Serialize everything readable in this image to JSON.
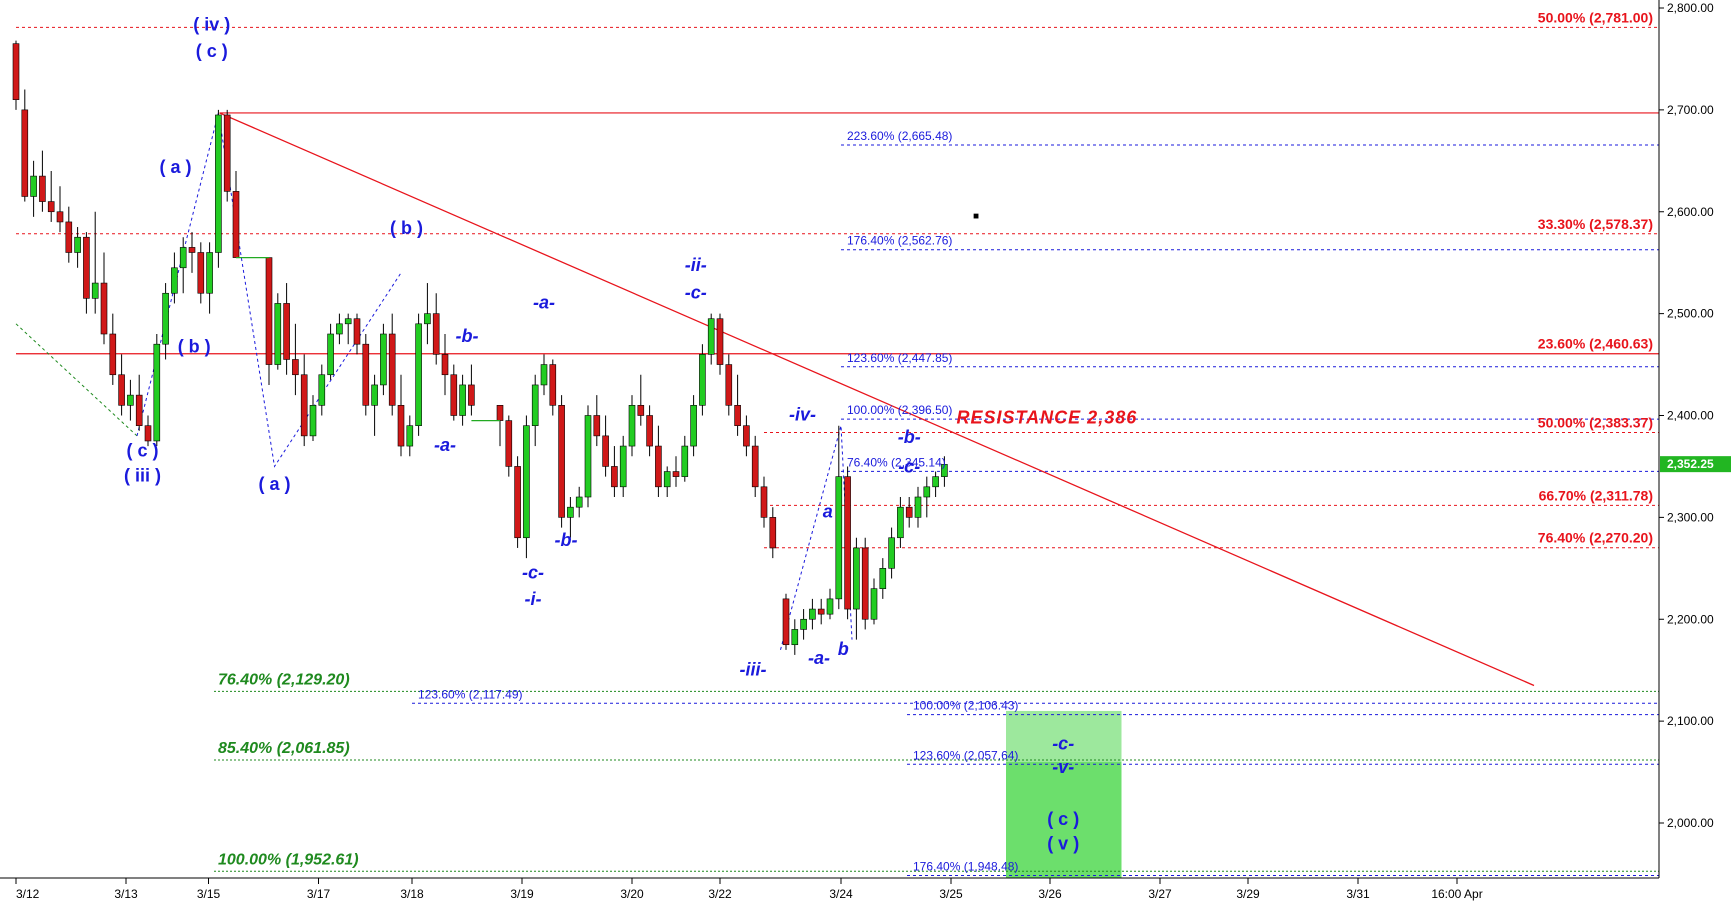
{
  "chart_data": {
    "type": "candlestick",
    "title": "",
    "xlabel": "",
    "ylabel": "",
    "ylim": [
      1940,
      2815
    ],
    "price_axis_ticks": [
      "2,800.00",
      "2,700.00",
      "2,600.00",
      "2,500.00",
      "2,400.00",
      "2,300.00",
      "2,200.00",
      "2,100.00",
      "2,000.00"
    ],
    "price_axis_tick_values": [
      2800,
      2700,
      2600,
      2500,
      2400,
      2300,
      2200,
      2100,
      2000
    ],
    "time_axis_ticks": [
      "3/12",
      "3/13",
      "3/15",
      "3/17",
      "3/18",
      "3/19",
      "3/20",
      "3/22",
      "3/24",
      "3/25",
      "3/26",
      "3/27",
      "3/29",
      "3/31",
      "16:00 Apr"
    ],
    "time_axis_tick_positions": [
      0.0,
      1.0,
      1.75,
      2.75,
      3.6,
      4.6,
      5.6,
      6.4,
      7.5,
      8.5,
      9.4,
      10.4,
      11.2,
      12.2,
      13.1
    ],
    "last_price": {
      "label": "2,352.25",
      "value": 2352.25,
      "color": "#22b622"
    },
    "candles": [
      [
        0.0,
        2765,
        2768,
        2700,
        2710
      ],
      [
        0.08,
        2700,
        2720,
        2610,
        2615
      ],
      [
        0.16,
        2615,
        2650,
        2595,
        2635
      ],
      [
        0.24,
        2635,
        2660,
        2600,
        2610
      ],
      [
        0.32,
        2610,
        2640,
        2590,
        2600
      ],
      [
        0.4,
        2600,
        2625,
        2580,
        2590
      ],
      [
        0.48,
        2590,
        2605,
        2550,
        2560
      ],
      [
        0.56,
        2560,
        2585,
        2545,
        2575
      ],
      [
        0.64,
        2575,
        2580,
        2500,
        2515
      ],
      [
        0.72,
        2515,
        2600,
        2500,
        2530
      ],
      [
        0.8,
        2530,
        2560,
        2470,
        2480
      ],
      [
        0.88,
        2480,
        2500,
        2430,
        2440
      ],
      [
        0.96,
        2440,
        2460,
        2400,
        2410
      ],
      [
        1.04,
        2410,
        2435,
        2395,
        2420
      ],
      [
        1.12,
        2420,
        2440,
        2385,
        2390
      ],
      [
        1.2,
        2390,
        2400,
        2370,
        2375
      ],
      [
        1.28,
        2375,
        2480,
        2370,
        2470
      ],
      [
        1.36,
        2470,
        2530,
        2455,
        2520
      ],
      [
        1.44,
        2520,
        2560,
        2510,
        2545
      ],
      [
        1.52,
        2545,
        2575,
        2520,
        2565
      ],
      [
        1.6,
        2565,
        2580,
        2540,
        2560
      ],
      [
        1.68,
        2560,
        2570,
        2510,
        2520
      ],
      [
        1.76,
        2520,
        2570,
        2500,
        2560
      ],
      [
        1.84,
        2560,
        2700,
        2545,
        2695
      ],
      [
        1.92,
        2695,
        2700,
        2610,
        2620
      ],
      [
        2.0,
        2620,
        2640,
        2555,
        2555
      ],
      [
        2.3,
        2555,
        2555,
        2430,
        2450
      ],
      [
        2.38,
        2450,
        2520,
        2445,
        2510
      ],
      [
        2.46,
        2510,
        2530,
        2440,
        2455
      ],
      [
        2.54,
        2455,
        2490,
        2420,
        2440
      ],
      [
        2.62,
        2440,
        2460,
        2370,
        2380
      ],
      [
        2.7,
        2380,
        2420,
        2375,
        2410
      ],
      [
        2.78,
        2410,
        2450,
        2400,
        2440
      ],
      [
        2.86,
        2440,
        2490,
        2435,
        2480
      ],
      [
        2.94,
        2480,
        2500,
        2470,
        2490
      ],
      [
        3.02,
        2490,
        2500,
        2470,
        2495
      ],
      [
        3.1,
        2495,
        2500,
        2460,
        2470
      ],
      [
        3.18,
        2470,
        2480,
        2400,
        2410
      ],
      [
        3.26,
        2410,
        2440,
        2380,
        2430
      ],
      [
        3.34,
        2430,
        2490,
        2420,
        2480
      ],
      [
        3.42,
        2480,
        2500,
        2400,
        2410
      ],
      [
        3.5,
        2410,
        2440,
        2360,
        2370
      ],
      [
        3.58,
        2370,
        2400,
        2360,
        2390
      ],
      [
        3.66,
        2390,
        2500,
        2380,
        2490
      ],
      [
        3.74,
        2490,
        2530,
        2470,
        2500
      ],
      [
        3.82,
        2500,
        2520,
        2450,
        2460
      ],
      [
        3.9,
        2460,
        2480,
        2420,
        2440
      ],
      [
        3.98,
        2440,
        2450,
        2395,
        2400
      ],
      [
        4.06,
        2400,
        2440,
        2390,
        2430
      ],
      [
        4.14,
        2430,
        2450,
        2400,
        2410
      ],
      [
        4.4,
        2410,
        2410,
        2370,
        2395
      ],
      [
        4.48,
        2395,
        2400,
        2340,
        2350
      ],
      [
        4.56,
        2350,
        2360,
        2270,
        2280
      ],
      [
        4.64,
        2280,
        2400,
        2260,
        2390
      ],
      [
        4.72,
        2390,
        2440,
        2370,
        2430
      ],
      [
        4.8,
        2430,
        2460,
        2420,
        2450
      ],
      [
        4.88,
        2450,
        2455,
        2400,
        2410
      ],
      [
        4.96,
        2410,
        2420,
        2290,
        2300
      ],
      [
        5.04,
        2300,
        2320,
        2280,
        2310
      ],
      [
        5.12,
        2310,
        2330,
        2300,
        2320
      ],
      [
        5.2,
        2320,
        2410,
        2310,
        2400
      ],
      [
        5.28,
        2400,
        2420,
        2370,
        2380
      ],
      [
        5.36,
        2380,
        2400,
        2340,
        2350
      ],
      [
        5.44,
        2350,
        2370,
        2320,
        2330
      ],
      [
        5.52,
        2330,
        2380,
        2320,
        2370
      ],
      [
        5.6,
        2370,
        2420,
        2360,
        2410
      ],
      [
        5.68,
        2410,
        2440,
        2390,
        2400
      ],
      [
        5.76,
        2400,
        2410,
        2360,
        2370
      ],
      [
        5.84,
        2370,
        2390,
        2320,
        2330
      ],
      [
        5.92,
        2330,
        2350,
        2320,
        2345
      ],
      [
        6.0,
        2345,
        2360,
        2330,
        2340
      ],
      [
        6.08,
        2340,
        2380,
        2335,
        2370
      ],
      [
        6.16,
        2370,
        2420,
        2360,
        2410
      ],
      [
        6.24,
        2410,
        2470,
        2400,
        2460
      ],
      [
        6.32,
        2460,
        2500,
        2450,
        2495
      ],
      [
        6.4,
        2495,
        2500,
        2440,
        2450
      ],
      [
        6.48,
        2450,
        2460,
        2400,
        2410
      ],
      [
        6.56,
        2410,
        2440,
        2380,
        2390
      ],
      [
        6.64,
        2390,
        2400,
        2360,
        2370
      ],
      [
        6.72,
        2370,
        2380,
        2320,
        2330
      ],
      [
        6.8,
        2330,
        2340,
        2290,
        2300
      ],
      [
        6.88,
        2300,
        2310,
        2260,
        2270
      ],
      [
        7.0,
        2220,
        2225,
        2170,
        2175
      ],
      [
        7.08,
        2175,
        2200,
        2165,
        2190
      ],
      [
        7.16,
        2190,
        2210,
        2180,
        2200
      ],
      [
        7.24,
        2200,
        2220,
        2190,
        2210
      ],
      [
        7.32,
        2210,
        2220,
        2195,
        2205
      ],
      [
        7.4,
        2205,
        2230,
        2200,
        2220
      ],
      [
        7.48,
        2220,
        2390,
        2210,
        2340
      ],
      [
        7.56,
        2340,
        2350,
        2200,
        2210
      ],
      [
        7.64,
        2210,
        2280,
        2180,
        2270
      ],
      [
        7.72,
        2270,
        2280,
        2190,
        2200
      ],
      [
        7.8,
        2200,
        2240,
        2195,
        2230
      ],
      [
        7.88,
        2230,
        2260,
        2220,
        2250
      ],
      [
        7.96,
        2250,
        2290,
        2240,
        2280
      ],
      [
        8.04,
        2280,
        2320,
        2270,
        2310
      ],
      [
        8.12,
        2310,
        2320,
        2290,
        2300
      ],
      [
        8.2,
        2300,
        2330,
        2290,
        2320
      ],
      [
        8.28,
        2320,
        2340,
        2300,
        2330
      ],
      [
        8.36,
        2330,
        2345,
        2320,
        2340
      ],
      [
        8.44,
        2340,
        2360,
        2330,
        2352
      ]
    ],
    "price_lines": [
      {
        "label": "50.00% (2,781.00)",
        "value": 2781.0,
        "color": "#e8141c",
        "style": "dashed",
        "from_x": 0.0,
        "label_side": "right"
      },
      {
        "label": "",
        "value": 2697.0,
        "color": "#e8141c",
        "style": "solid",
        "from_x": 1.85,
        "label_side": "none"
      },
      {
        "label": "223.60% (2,665.48)",
        "value": 2665.48,
        "color": "#1a1adc",
        "style": "dashed",
        "from_x": 7.5,
        "label_side": "left"
      },
      {
        "label": "33.30% (2,578.37)",
        "value": 2578.37,
        "color": "#e8141c",
        "style": "dashed",
        "from_x": 0.0,
        "label_side": "right"
      },
      {
        "label": "176.40% (2,562.76)",
        "value": 2562.76,
        "color": "#1a1adc",
        "style": "dashed",
        "from_x": 7.5,
        "label_side": "left"
      },
      {
        "label": "23.60% (2,460.63)",
        "value": 2460.63,
        "color": "#e8141c",
        "style": "solid",
        "from_x": 0.0,
        "label_side": "right"
      },
      {
        "label": "123.60% (2,447.85)",
        "value": 2447.85,
        "color": "#1a1adc",
        "style": "dashed",
        "from_x": 7.5,
        "label_side": "left"
      },
      {
        "label": "100.00% (2,396.50)",
        "value": 2396.5,
        "color": "#1a1adc",
        "style": "dashed",
        "from_x": 7.5,
        "label_side": "left"
      },
      {
        "label": "50.00% (2,383.37)",
        "value": 2383.37,
        "color": "#e8141c",
        "style": "dashed",
        "from_x": 6.8,
        "label_side": "right"
      },
      {
        "label": "76.40% (2,345.14)",
        "value": 2345.14,
        "color": "#1a1adc",
        "style": "dashed",
        "from_x": 7.5,
        "label_side": "left"
      },
      {
        "label": "66.70% (2,311.78)",
        "value": 2311.78,
        "color": "#e8141c",
        "style": "dashed",
        "from_x": 6.8,
        "label_side": "right"
      },
      {
        "label": "76.40% (2,270.20)",
        "value": 2270.2,
        "color": "#e8141c",
        "style": "dashed",
        "from_x": 6.8,
        "label_side": "right"
      },
      {
        "label": "76.40% (2,129.20)",
        "value": 2129.2,
        "color": "#1f8a1f",
        "style": "dotted",
        "from_x": 1.8,
        "label_side": "left-big"
      },
      {
        "label": "123.60% (2,117.49)",
        "value": 2117.49,
        "color": "#1a1adc",
        "style": "dashed",
        "from_x": 3.6,
        "label_side": "left"
      },
      {
        "label": "100.00% (2,106.43)",
        "value": 2106.43,
        "color": "#1a1adc",
        "style": "dashed",
        "from_x": 8.1,
        "label_side": "left"
      },
      {
        "label": "85.40% (2,061.85)",
        "value": 2061.85,
        "color": "#1f8a1f",
        "style": "dotted",
        "from_x": 1.8,
        "label_side": "left-big"
      },
      {
        "label": "123.60% (2,057.64)",
        "value": 2057.64,
        "color": "#1a1adc",
        "style": "dashed",
        "from_x": 8.1,
        "label_side": "left"
      },
      {
        "label": "100.00% (1,952.61)",
        "value": 1952.61,
        "color": "#1f8a1f",
        "style": "dotted",
        "from_x": 1.8,
        "label_side": "left-big"
      },
      {
        "label": "176.40% (1,948.48)",
        "value": 1948.48,
        "color": "#1a1adc",
        "style": "dashed",
        "from_x": 8.1,
        "label_side": "left"
      }
    ],
    "trendline": {
      "from": [
        1.85,
        2697
      ],
      "to": [
        13.8,
        2135
      ],
      "color": "#e8141c"
    },
    "target_zone": {
      "x_from": 9.0,
      "x_to": 10.05,
      "upper": [
        2110,
        2060
      ],
      "lower": [
        2060,
        1940
      ],
      "colors": [
        "#9de89d",
        "#6cdf6c"
      ]
    },
    "wave_paths": [
      {
        "points": [
          [
            0.0,
            2490
          ],
          [
            1.1,
            2380
          ]
        ],
        "color": "#1f8a1f"
      },
      {
        "points": [
          [
            1.1,
            2380
          ],
          [
            1.84,
            2697
          ],
          [
            2.35,
            2350
          ],
          [
            3.5,
            2540
          ]
        ],
        "color": "#1a1adc"
      },
      {
        "points": [
          [
            6.95,
            2170
          ],
          [
            7.5,
            2390
          ],
          [
            7.6,
            2180
          ]
        ],
        "color": "#1a1adc"
      }
    ],
    "wave_labels": [
      {
        "text": "( iv )",
        "x": 1.78,
        "y": 2778,
        "style": "upright"
      },
      {
        "text": "( c )",
        "x": 1.78,
        "y": 2752,
        "style": "upright"
      },
      {
        "text": "( a )",
        "x": 1.45,
        "y": 2638,
        "style": "upright"
      },
      {
        "text": "( b )",
        "x": 1.62,
        "y": 2462,
        "style": "upright"
      },
      {
        "text": "( c )",
        "x": 1.15,
        "y": 2360,
        "style": "upright"
      },
      {
        "text": "( iii )",
        "x": 1.15,
        "y": 2335,
        "style": "upright"
      },
      {
        "text": "( a )",
        "x": 2.35,
        "y": 2327,
        "style": "upright"
      },
      {
        "text": "( b )",
        "x": 3.55,
        "y": 2578,
        "style": "upright"
      },
      {
        "text": "-b-",
        "x": 4.1,
        "y": 2472,
        "style": "italic"
      },
      {
        "text": "-a-",
        "x": 4.8,
        "y": 2505,
        "style": "italic"
      },
      {
        "text": "-a-",
        "x": 3.9,
        "y": 2365,
        "style": "italic"
      },
      {
        "text": "-b-",
        "x": 5.0,
        "y": 2272,
        "style": "italic"
      },
      {
        "text": "-c-",
        "x": 4.7,
        "y": 2240,
        "style": "italic"
      },
      {
        "text": "-i-",
        "x": 4.7,
        "y": 2214,
        "style": "italic"
      },
      {
        "text": "-ii-",
        "x": 6.18,
        "y": 2542,
        "style": "italic"
      },
      {
        "text": "-c-",
        "x": 6.18,
        "y": 2515,
        "style": "italic"
      },
      {
        "text": "-iii-",
        "x": 6.7,
        "y": 2145,
        "style": "italic"
      },
      {
        "text": "-iv-",
        "x": 7.15,
        "y": 2395,
        "style": "italic"
      },
      {
        "text": "a",
        "x": 7.38,
        "y": 2300,
        "style": "italic"
      },
      {
        "text": "-a-",
        "x": 7.3,
        "y": 2156,
        "style": "italic"
      },
      {
        "text": "b",
        "x": 7.52,
        "y": 2165,
        "style": "italic"
      },
      {
        "text": "-b-",
        "x": 8.12,
        "y": 2373,
        "style": "italic"
      },
      {
        "text": "-c-",
        "x": 8.12,
        "y": 2344,
        "style": "italic"
      },
      {
        "text": "-c-",
        "x": 9.52,
        "y": 2072,
        "style": "italic"
      },
      {
        "text": "-v-",
        "x": 9.52,
        "y": 2049,
        "style": "italic"
      },
      {
        "text": "( c )",
        "x": 9.52,
        "y": 1998,
        "style": "upright"
      },
      {
        "text": "( v )",
        "x": 9.52,
        "y": 1974,
        "style": "upright"
      }
    ],
    "annotations": [
      {
        "text": "RESISTANCE 2,386",
        "x": 8.55,
        "y": 2392
      },
      {
        "text": "■",
        "x": 8.7,
        "y": 2593
      }
    ]
  }
}
